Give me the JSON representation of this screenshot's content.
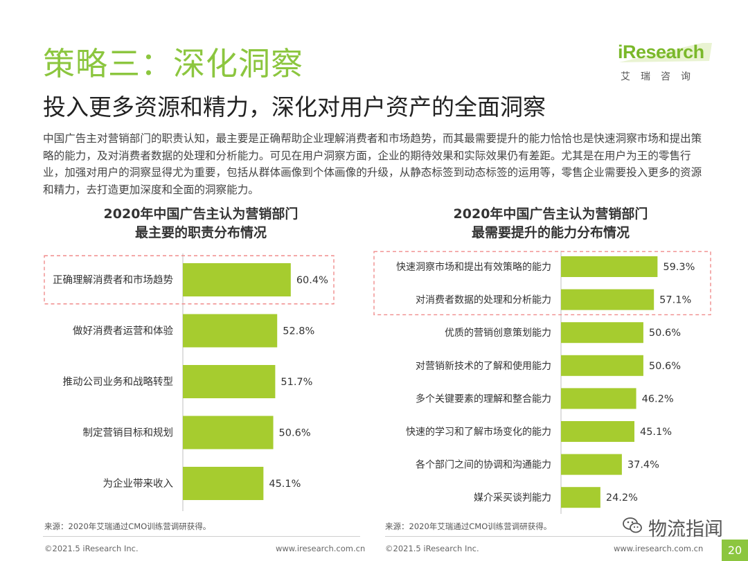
{
  "header": {
    "title": "策略三：深化洞察",
    "subtitle": "投入更多资源和精力，深化对用户资产的全面洞察"
  },
  "logo": {
    "main": "iResearch",
    "sub": "艾瑞咨询"
  },
  "intro": "中国广告主对营销部门的职责认知，最主要是正确帮助企业理解消费者和市场趋势，而其最需要提升的能力恰恰也是快速洞察市场和提出策略的能力，及对消费者数据的处理和分析能力。可见在用户洞察方面，企业的期待效果和实际效果仍有差距。尤其是在用户为王的零售行业，加强对用户的洞察显得尤为重要，包括从群体画像到个体画像的升级，从静态标签到动态标签的运用等，零售企业需要投入更多的资源和精力，去打造更加深度和全面的洞察能力。",
  "chart_data": [
    {
      "type": "bar",
      "orientation": "horizontal",
      "title": "2020年中国广告主认为营销部门最主要的职责分布情况",
      "title_lines": [
        "2020年中国广告主认为营销部门",
        "最主要的职责分布情况"
      ],
      "categories": [
        "正确理解消费者和市场趋势",
        "做好消费者运营和体验",
        "推动公司业务和战略转型",
        "制定营销目标和规划",
        "为企业带来收入"
      ],
      "values": [
        60.4,
        52.8,
        51.7,
        50.6,
        45.1
      ],
      "value_labels": [
        "60.4%",
        "52.8%",
        "51.7%",
        "50.6%",
        "45.1%"
      ],
      "highlighted": [
        0
      ],
      "bar_color": "#a6cc2f",
      "highlight_color": "#f08b8b",
      "xlim": [
        0,
        100
      ]
    },
    {
      "type": "bar",
      "orientation": "horizontal",
      "title": "2020年中国广告主认为营销部门最需要提升的能力分布情况",
      "title_lines": [
        "2020年中国广告主认为营销部门",
        "最需要提升的能力分布情况"
      ],
      "categories": [
        "快速洞察市场和提出有效策略的能力",
        "对消费者数据的处理和分析能力",
        "优质的营销创意策划能力",
        "对营销新技术的了解和使用能力",
        "多个关键要素的理解和整合能力",
        "快速的学习和了解市场变化的能力",
        "各个部门之间的协调和沟通能力",
        "媒介采买谈判能力"
      ],
      "values": [
        59.3,
        57.1,
        50.6,
        50.6,
        46.2,
        45.1,
        37.4,
        24.2
      ],
      "value_labels": [
        "59.3%",
        "57.1%",
        "50.6%",
        "50.6%",
        "46.2%",
        "45.1%",
        "37.4%",
        "24.2%"
      ],
      "highlighted": [
        0,
        1
      ],
      "bar_color": "#a6cc2f",
      "highlight_color": "#f08b8b",
      "xlim": [
        0,
        100
      ]
    }
  ],
  "footer": {
    "source_left": "来源：2020年艾瑞通过CMO训练营调研获得。",
    "source_right": "来源：2020年艾瑞通过CMO训练营调研获得。",
    "copyright_left": "©2021.5 iResearch Inc.",
    "url_left": "www.iresearch.com.cn",
    "copyright_right": "©2021.5 iResearch Inc.",
    "url_right": "www.iresearch.com.cn",
    "page": "20"
  },
  "watermark": {
    "text": "物流指闻",
    "icon": "wechat-icon"
  }
}
